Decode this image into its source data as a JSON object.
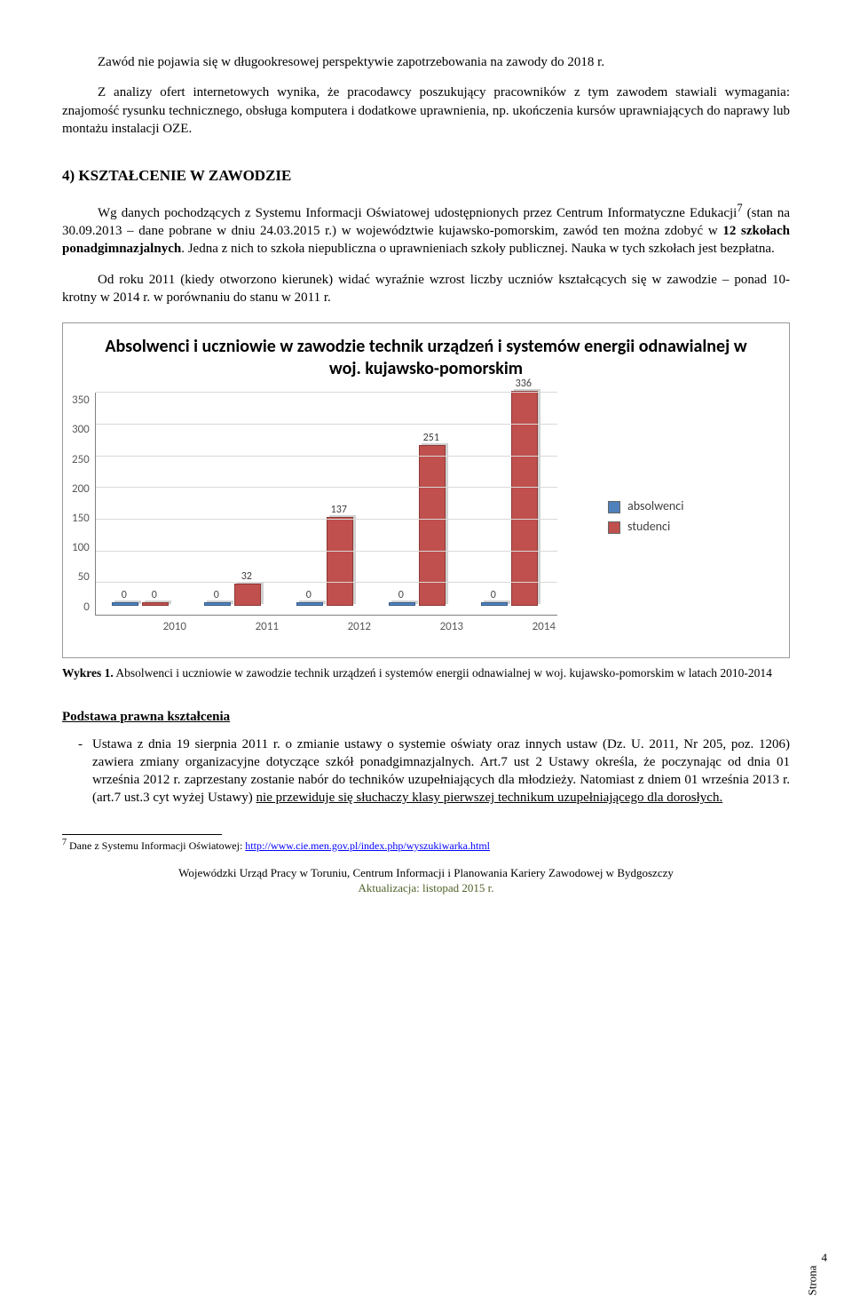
{
  "para1": "Zawód nie pojawia się w długookresowej perspektywie zapotrzebowania na zawody do 2018 r.",
  "para2": "Z analizy ofert internetowych wynika, że pracodawcy poszukujący pracowników z tym zawodem stawiali wymagania: znajomość rysunku technicznego, obsługa komputera i dodatkowe uprawnienia, np. ukończenia kursów uprawniających do naprawy lub montażu instalacji OZE.",
  "heading4": "4) KSZTAŁCENIE W ZAWODZIE",
  "para3a": "Wg danych pochodzących z Systemu Informacji Oświatowej udostępnionych przez Centrum Informatyczne Edukacji",
  "para3sup": "7",
  "para3b": " (stan na 30.09.2013 – dane pobrane w dniu 24.03.2015 r.) w województwie kujawsko-pomorskim, zawód ten można zdobyć w ",
  "para3bold": "12 szkołach ponadgimnazjalnych",
  "para3c": ". Jedna z nich to szkoła niepubliczna o uprawnieniach szkoły publicznej. Nauka w tych szkołach jest bezpłatna.",
  "para4": "Od roku 2011 (kiedy otworzono kierunek) widać wyraźnie wzrost liczby uczniów kształcących się w zawodzie – ponad 10-krotny w 2014 r. w porównaniu do stanu w 2011 r.",
  "chart": {
    "title": "Absolwenci i uczniowie w zawodzie technik urządzeń i systemów energii odnawialnej w woj. kujawsko-pomorskim",
    "categories": [
      "2010",
      "2011",
      "2012",
      "2013",
      "2014"
    ],
    "absolwenci": [
      0,
      0,
      0,
      0,
      0
    ],
    "studenci": [
      0,
      32,
      137,
      251,
      336
    ],
    "y_max": 350,
    "y_step": 50,
    "series": [
      {
        "key": "absolwenci",
        "label": "absolwenci",
        "color": "#4f81bd"
      },
      {
        "key": "studenci",
        "label": "studenci",
        "color": "#c0504d"
      }
    ]
  },
  "caption_b": "Wykres 1.",
  "caption": " Absolwenci i uczniowie w zawodzie technik urządzeń i systemów energii odnawialnej w woj. kujawsko-pomorskim w latach 2010-2014",
  "legal_heading": "Podstawa prawna kształcenia",
  "legal_item_a": "Ustawa z dnia 19 sierpnia 2011 r. o zmianie ustawy o systemie oświaty oraz innych ustaw (Dz. U. 2011, Nr 205, poz. 1206) zawiera zmiany organizacyjne dotyczące szkół ponadgimnazjalnych. Art.7 ust 2 Ustawy określa, że poczynając od dnia 01 września 2012 r. zaprzestany zostanie nabór do techników uzupełniających dla młodzieży. Natomiast z dniem 01 września 2013 r. (art.7 ust.3 cyt wyżej Ustawy) ",
  "legal_item_u": "nie przewiduje się słuchaczy klasy pierwszej technikum uzupełniającego dla dorosłych.",
  "footnote_num": "7",
  "footnote_txt": " Dane z Systemu Informacji Oświatowej: ",
  "footnote_link": "http://www.cie.men.gov.pl/index.php/wyszukiwarka.html",
  "footer1": "Wojewódzki Urząd Pracy w Toruniu, Centrum Informacji i Planowania Kariery Zawodowej w Bydgoszczy",
  "footer2": "Aktualizacja: listopad 2015 r.",
  "page_label": "Strona",
  "page_num": "4"
}
